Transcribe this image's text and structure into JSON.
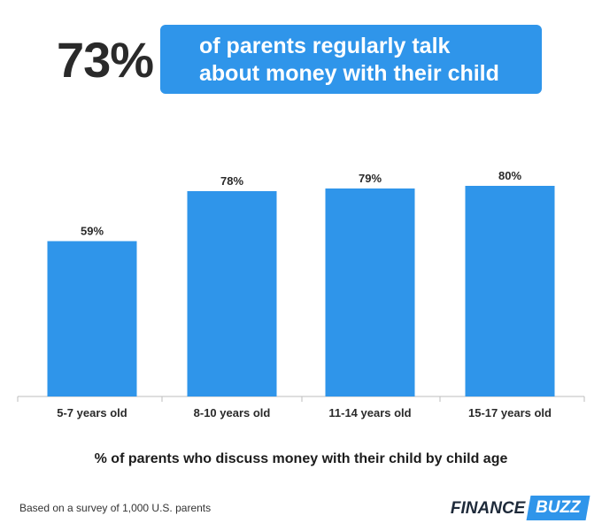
{
  "headline": {
    "stat": "73%",
    "line1": "of parents regularly talk",
    "line2": "about money with their child"
  },
  "chart_data": {
    "type": "bar",
    "categories": [
      "5-7 years old",
      "8-10 years old",
      "11-14 years old",
      "15-17 years old"
    ],
    "values": [
      59,
      78,
      79,
      80
    ],
    "value_labels": [
      "59%",
      "78%",
      "79%",
      "80%"
    ],
    "title": "% of parents who discuss money with their child by child age",
    "xlabel": "",
    "ylabel": "",
    "ylim": [
      0,
      100
    ],
    "grid": false,
    "bar_color": "#2f95ea"
  },
  "footnote": "Based on a survey of 1,000 U.S. parents",
  "logo": {
    "part1": "FINANCE",
    "part2": "BUZZ"
  },
  "colors": {
    "accent": "#2f95ea",
    "text": "#222222"
  }
}
